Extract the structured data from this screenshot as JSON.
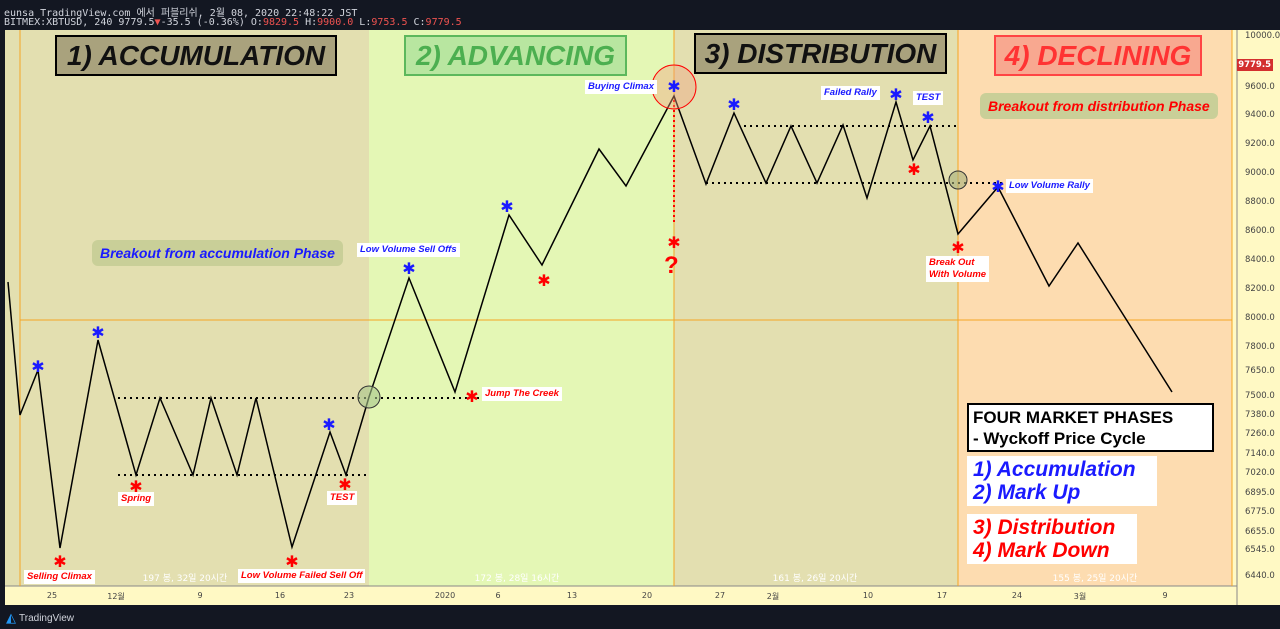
{
  "header": {
    "line1": "eunsa TradingView.com 에서 퍼블리쉬, 2월 08, 2020 22:48:22 JST",
    "symbol": "BITMEX:XBTUSD, 240",
    "last": "9779.5",
    "change": "-35.5 (-0.36%)",
    "o_label": "O:",
    "o": "9829.5",
    "h_label": "H:",
    "h": "9900.0",
    "l_label": "L:",
    "l": "9753.5",
    "c_label": "C:",
    "c": "9779.5"
  },
  "phases": [
    "1) ACCUMULATION",
    "2) ADVANCING",
    "3) DISTRIBUTION",
    "4) DECLINING"
  ],
  "callouts": {
    "acc": "Breakout from accumulation Phase",
    "dist": "Breakout from distribution Phase"
  },
  "labels": {
    "selling_climax": "Selling Climax",
    "spring": "Spring",
    "lv_failed": "Low Volume Failed Sell Off",
    "test1": "TEST",
    "jump": "Jump The Creek",
    "lv_selloffs": "Low Volume Sell Offs",
    "buying_climax": "Buying Climax",
    "failed_rally": "Failed Rally",
    "test2": "TEST",
    "lv_rally": "Low Volume Rally",
    "breakout_vol_1": "Break Out",
    "breakout_vol_2": "With Volume",
    "question": "?"
  },
  "legend": {
    "title1": "FOUR MARKET PHASES",
    "title2": "- Wyckoff Price Cycle",
    "p1": "1) Accumulation",
    "p2": "2) Mark Up",
    "p3": "3) Distribution",
    "p4": "4) Mark Down"
  },
  "bar_counts": [
    "197 봉, 32일 20시간",
    "172 봉, 28일 16시간",
    "161 봉, 26일 20시간",
    "155 봉, 25일 20시간"
  ],
  "price_axis": [
    "10000.0",
    "9600.0",
    "9400.0",
    "9200.0",
    "9000.0",
    "8800.0",
    "8600.0",
    "8400.0",
    "8200.0",
    "8000.0",
    "7800.0",
    "7650.0",
    "7500.0",
    "7380.0",
    "7260.0",
    "7140.0",
    "7020.0",
    "6895.0",
    "6775.0",
    "6655.0",
    "6545.0",
    "6440.0"
  ],
  "current_price_tag": "9779.5",
  "time_axis": [
    "25",
    "12월",
    "9",
    "16",
    "23",
    "2020",
    "6",
    "13",
    "20",
    "27",
    "2월",
    "10",
    "17",
    "24",
    "3월",
    "9"
  ],
  "footer": {
    "brand": "TradingView"
  },
  "colors": {
    "accumulation": "#e3dfb0",
    "advancing": "#e4f7b5",
    "distribution": "#e3dfb0",
    "declining": "#fddcb0",
    "price_tag": "#d32f2f"
  }
}
